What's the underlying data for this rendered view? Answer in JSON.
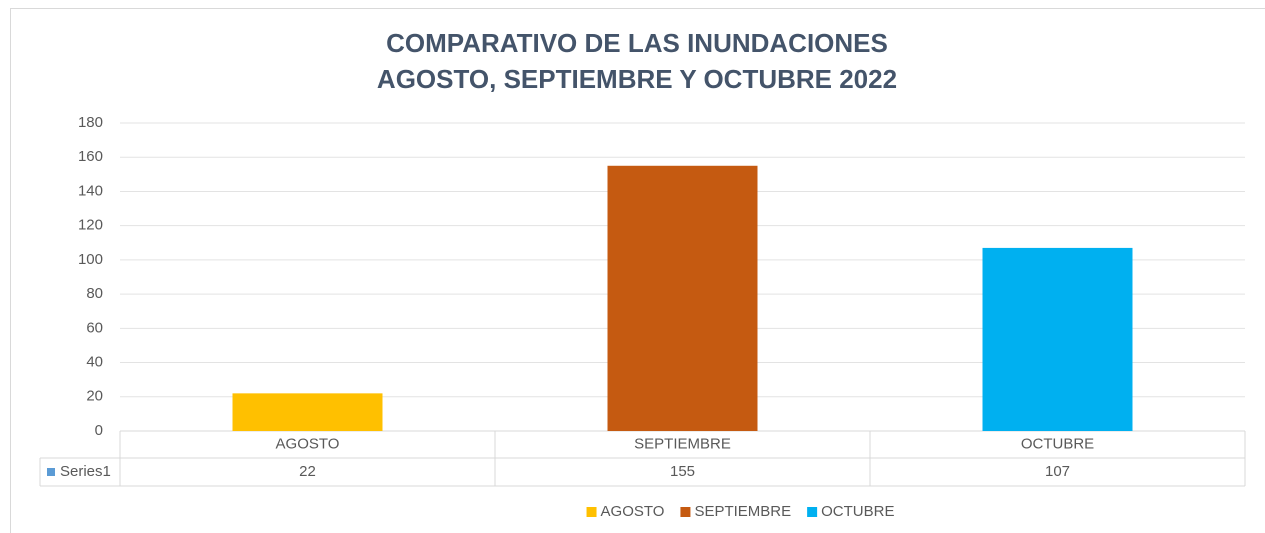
{
  "chart_data": {
    "type": "bar",
    "title": [
      "COMPARATIVO DE LAS INUNDACIONES",
      "AGOSTO, SEPTIEMBRE Y OCTUBRE  2022"
    ],
    "categories": [
      "AGOSTO",
      "SEPTIEMBRE",
      "OCTUBRE"
    ],
    "series": [
      {
        "name": "Series1",
        "color": "#5B9BD5",
        "values": [
          22,
          155,
          107
        ]
      }
    ],
    "colors": [
      "#FFC000",
      "#C55A11",
      "#00B0F0"
    ],
    "ylim": [
      0,
      180
    ],
    "yticks": [
      0,
      20,
      40,
      60,
      80,
      100,
      120,
      140,
      160,
      180
    ],
    "grid": true,
    "data_table": true,
    "legend": "bottom"
  }
}
